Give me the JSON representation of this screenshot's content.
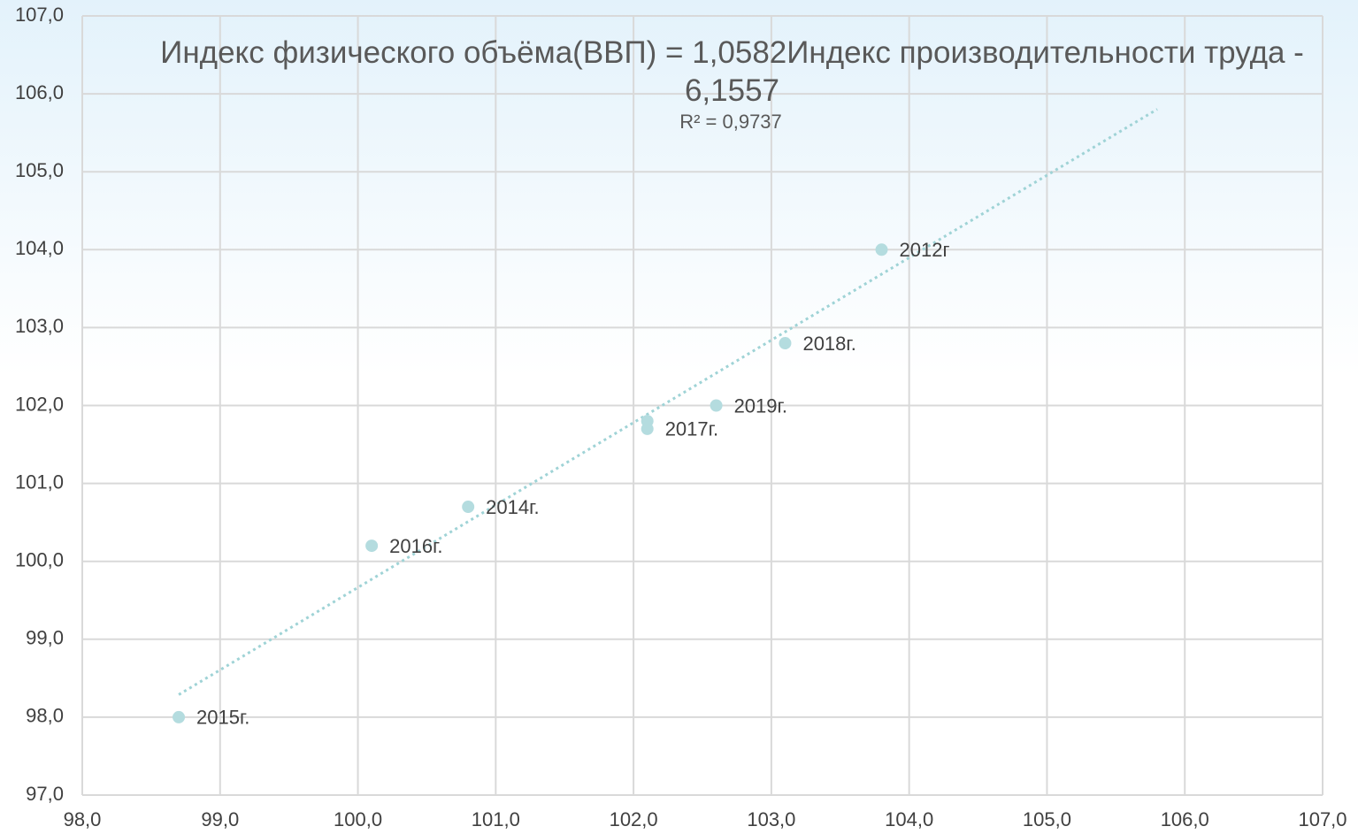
{
  "chart_data": {
    "type": "scatter",
    "series": [
      {
        "color": "#b4dcdf",
        "x": [
          103.8,
          103.1,
          102.6,
          102.1,
          102.1,
          100.8,
          100.1,
          98.7
        ],
        "values": [
          104.0,
          102.8,
          102.0,
          101.8,
          101.7,
          100.7,
          100.2,
          98.0
        ],
        "labels": [
          "2012г",
          "2018г.",
          "2019г.",
          null,
          "2017г.",
          "2014г.",
          "2016г.",
          "2015г."
        ]
      }
    ],
    "trendline": {
      "equation": "Индекс  физического объёма(ВВП) = 1,0582Индекс производительности труда - 6,1557",
      "r_squared": "R² = 0,9737",
      "slope": 1.0582,
      "intercept": -6.1557,
      "xlim": [
        98.7,
        105.8
      ],
      "color": "#9fd3d6"
    },
    "xlim": [
      98,
      107
    ],
    "xticks": [
      {
        "value": 98,
        "label": "98,0"
      },
      {
        "value": 99,
        "label": "99,0"
      },
      {
        "value": 100,
        "label": "100,0"
      },
      {
        "value": 101,
        "label": "101,0"
      },
      {
        "value": 102,
        "label": "102,0"
      },
      {
        "value": 103,
        "label": "103,0"
      },
      {
        "value": 104,
        "label": "104,0"
      },
      {
        "value": 105,
        "label": "105,0"
      },
      {
        "value": 106,
        "label": "106,0"
      },
      {
        "value": 107,
        "label": "107,0"
      }
    ],
    "ylim": [
      97,
      107
    ],
    "yticks": [
      {
        "value": 97,
        "label": "97,0"
      },
      {
        "value": 98,
        "label": "98,0"
      },
      {
        "value": 99,
        "label": "99,0"
      },
      {
        "value": 100,
        "label": "100,0"
      },
      {
        "value": 101,
        "label": "101,0"
      },
      {
        "value": 102,
        "label": "102,0"
      },
      {
        "value": 103,
        "label": "103,0"
      },
      {
        "value": 104,
        "label": "104,0"
      },
      {
        "value": 105,
        "label": "105,0"
      },
      {
        "value": 106,
        "label": "106,0"
      },
      {
        "value": 107,
        "label": "107,0"
      }
    ],
    "grid": true
  }
}
